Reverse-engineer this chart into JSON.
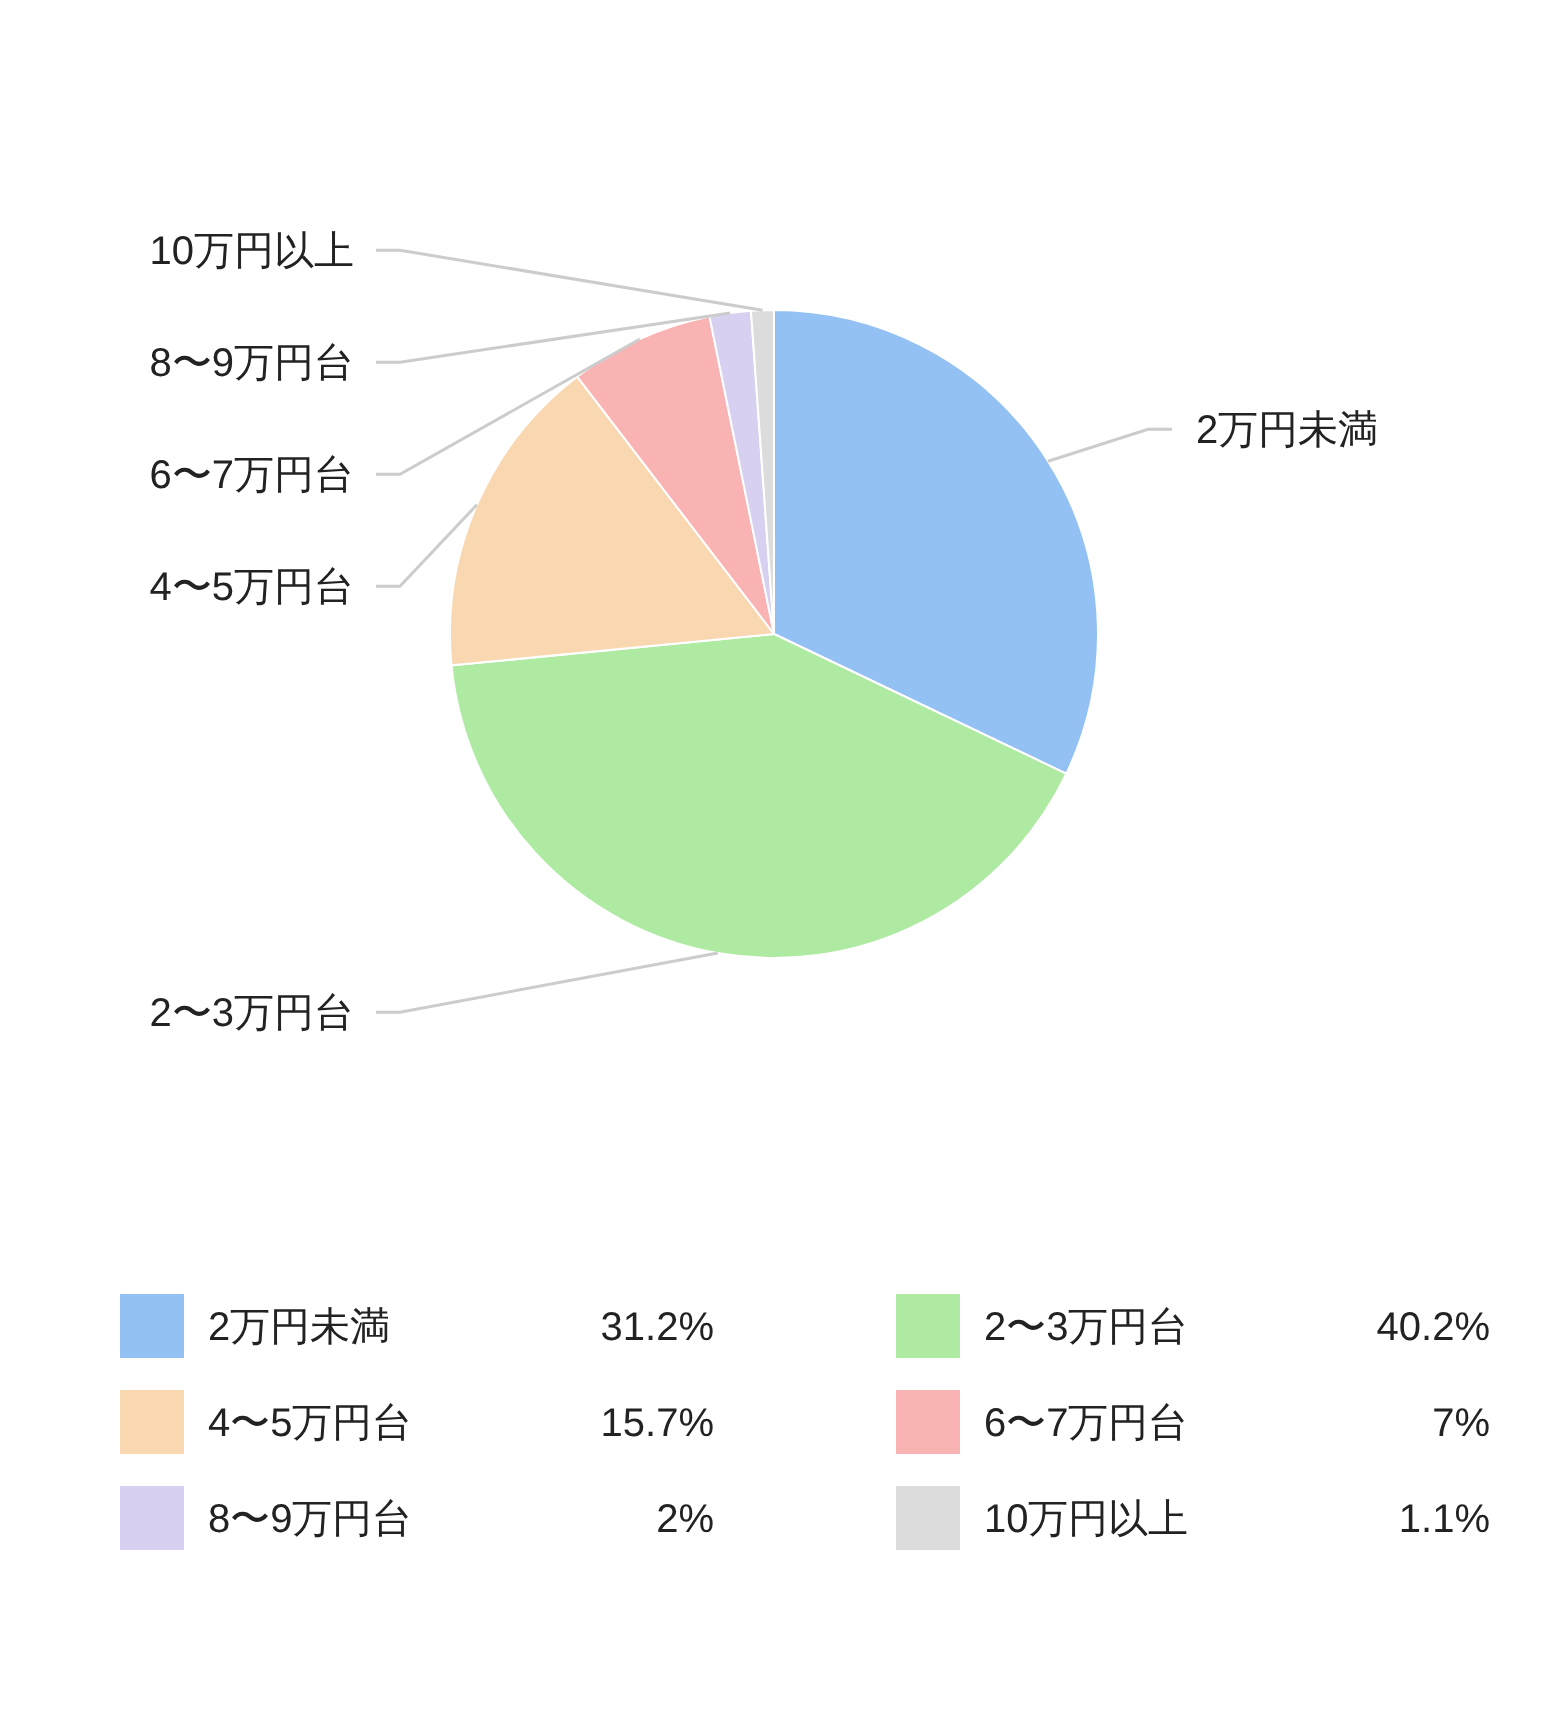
{
  "chart_data": {
    "type": "pie",
    "categories": [
      "2万円未満",
      "2〜3万円台",
      "4〜5万円台",
      "6〜7万円台",
      "8〜9万円台",
      "10万円以上"
    ],
    "values": [
      31.2,
      40.2,
      15.7,
      7,
      2,
      1.1
    ],
    "colors": [
      "#94c1f4",
      "#aeeaa2",
      "#f9d7b1",
      "#f9b3b3",
      "#d7d0f0",
      "#dcdcdc"
    ],
    "value_labels": [
      "31.2%",
      "40.2%",
      "15.7%",
      "7%",
      "2%",
      "1.1%"
    ],
    "legend": "bottom"
  }
}
